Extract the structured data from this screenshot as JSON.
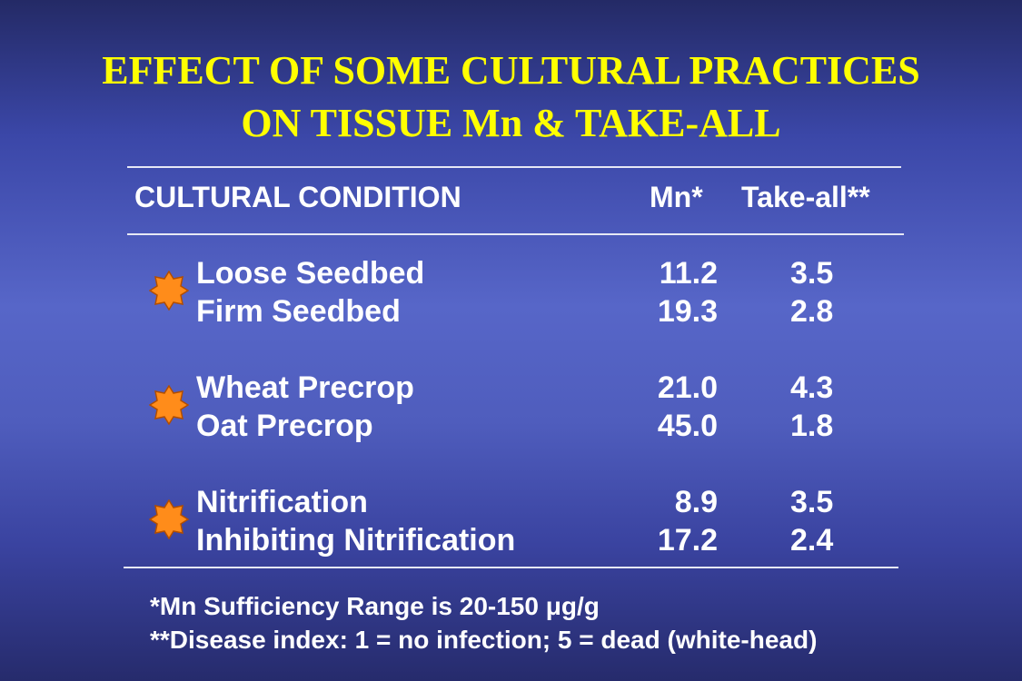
{
  "title": {
    "line1": "EFFECT OF SOME CULTURAL PRACTICES",
    "line2": "ON TISSUE Mn & TAKE-ALL"
  },
  "table": {
    "headers": {
      "condition": "CULTURAL CONDITION",
      "mn": "Mn*",
      "takeall": "Take-all**"
    },
    "groups": [
      {
        "bullet_icon": "orange-starburst-icon",
        "rows": [
          {
            "condition": "Loose Seedbed",
            "mn": "11.2",
            "takeall": "3.5"
          },
          {
            "condition": "Firm Seedbed",
            "mn": "19.3",
            "takeall": "2.8"
          }
        ]
      },
      {
        "bullet_icon": "orange-starburst-icon",
        "rows": [
          {
            "condition": "Wheat Precrop",
            "mn": "21.0",
            "takeall": "4.3"
          },
          {
            "condition": "Oat Precrop",
            "mn": "45.0",
            "takeall": "1.8"
          }
        ]
      },
      {
        "bullet_icon": "orange-starburst-icon",
        "rows": [
          {
            "condition": "Nitrification",
            "mn": "8.9",
            "takeall": "3.5"
          },
          {
            "condition": "Inhibiting Nitrification",
            "mn": "17.2",
            "takeall": "2.4"
          }
        ]
      }
    ]
  },
  "footnotes": {
    "note1": "*Mn Sufficiency Range is 20-150 μg/g",
    "note2": "**Disease index: 1 = no infection; 5 = dead (white-head)"
  },
  "colors": {
    "title": "#ffff00",
    "text": "#ffffff",
    "bullet": "#ff8c1a",
    "background_center": "#5766c8",
    "background_edge": "#242a66"
  }
}
